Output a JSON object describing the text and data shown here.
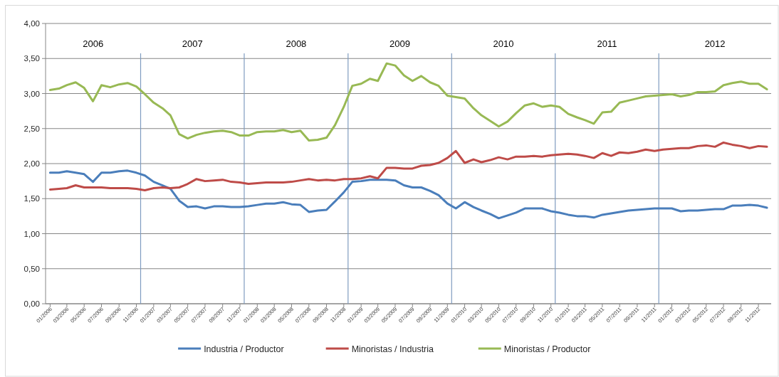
{
  "chart_data": {
    "type": "line",
    "x": [
      "2006-01",
      "2006-02",
      "2006-03",
      "2006-04",
      "2006-05",
      "2006-06",
      "2006-07",
      "2006-08",
      "2006-09",
      "2006-10",
      "2006-11",
      "2006-12",
      "2007-01",
      "2007-02",
      "2007-03",
      "2007-04",
      "2007-05",
      "2007-06",
      "2007-07",
      "2007-08",
      "2007-09",
      "2007-10",
      "2007-11",
      "2007-12",
      "2008-01",
      "2008-02",
      "2008-03",
      "2008-04",
      "2008-05",
      "2008-06",
      "2008-07",
      "2008-08",
      "2008-09",
      "2008-10",
      "2008-11",
      "2008-12",
      "2009-01",
      "2009-02",
      "2009-03",
      "2009-04",
      "2009-05",
      "2009-06",
      "2009-07",
      "2009-08",
      "2009-09",
      "2009-10",
      "2009-11",
      "2009-12",
      "2010-01",
      "2010-02",
      "2010-03",
      "2010-04",
      "2010-05",
      "2010-06",
      "2010-07",
      "2010-08",
      "2010-09",
      "2010-10",
      "2010-11",
      "2010-12",
      "2011-01",
      "2011-02",
      "2011-03",
      "2011-04",
      "2011-05",
      "2011-06",
      "2011-07",
      "2011-08",
      "2011-09",
      "2011-10",
      "2011-11",
      "2011-12",
      "2012-01",
      "2012-02",
      "2012-03",
      "2012-04",
      "2012-05",
      "2012-06",
      "2012-07",
      "2012-08",
      "2012-09",
      "2012-10",
      "2012-11",
      "2012-12"
    ],
    "series": [
      {
        "name": "Industria / Productor",
        "color": "#4a7ebb",
        "values": [
          1.87,
          1.87,
          1.89,
          1.87,
          1.85,
          1.74,
          1.87,
          1.87,
          1.89,
          1.9,
          1.87,
          1.83,
          1.74,
          1.69,
          1.64,
          1.47,
          1.38,
          1.39,
          1.36,
          1.39,
          1.39,
          1.38,
          1.38,
          1.39,
          1.41,
          1.43,
          1.43,
          1.45,
          1.42,
          1.41,
          1.31,
          1.33,
          1.34,
          1.46,
          1.59,
          1.74,
          1.75,
          1.77,
          1.77,
          1.77,
          1.76,
          1.69,
          1.66,
          1.66,
          1.61,
          1.55,
          1.43,
          1.36,
          1.45,
          1.38,
          1.33,
          1.28,
          1.22,
          1.26,
          1.3,
          1.36,
          1.36,
          1.36,
          1.32,
          1.3,
          1.27,
          1.25,
          1.25,
          1.23,
          1.27,
          1.29,
          1.31,
          1.33,
          1.34,
          1.35,
          1.36,
          1.36,
          1.36,
          1.32,
          1.33,
          1.33,
          1.34,
          1.35,
          1.35,
          1.4,
          1.4,
          1.41,
          1.4,
          1.37
        ]
      },
      {
        "name": "Minoristas / Industria",
        "color": "#be4b48",
        "values": [
          1.63,
          1.64,
          1.65,
          1.69,
          1.66,
          1.66,
          1.66,
          1.65,
          1.65,
          1.65,
          1.64,
          1.62,
          1.65,
          1.66,
          1.65,
          1.66,
          1.71,
          1.78,
          1.75,
          1.76,
          1.77,
          1.74,
          1.73,
          1.71,
          1.72,
          1.73,
          1.73,
          1.73,
          1.74,
          1.76,
          1.78,
          1.76,
          1.77,
          1.76,
          1.78,
          1.78,
          1.79,
          1.82,
          1.79,
          1.94,
          1.94,
          1.93,
          1.93,
          1.97,
          1.98,
          2.01,
          2.08,
          2.18,
          2.01,
          2.06,
          2.02,
          2.05,
          2.09,
          2.06,
          2.1,
          2.1,
          2.11,
          2.1,
          2.12,
          2.13,
          2.14,
          2.13,
          2.11,
          2.08,
          2.15,
          2.11,
          2.16,
          2.15,
          2.17,
          2.2,
          2.18,
          2.2,
          2.21,
          2.22,
          2.22,
          2.25,
          2.26,
          2.24,
          2.3,
          2.27,
          2.25,
          2.22,
          2.25,
          2.24
        ]
      },
      {
        "name": "Minoristas / Productor",
        "color": "#98b954",
        "values": [
          3.05,
          3.07,
          3.12,
          3.16,
          3.08,
          2.89,
          3.12,
          3.09,
          3.13,
          3.15,
          3.1,
          2.99,
          2.87,
          2.79,
          2.69,
          2.42,
          2.36,
          2.41,
          2.44,
          2.46,
          2.47,
          2.45,
          2.4,
          2.4,
          2.45,
          2.46,
          2.46,
          2.48,
          2.45,
          2.47,
          2.33,
          2.34,
          2.37,
          2.55,
          2.81,
          3.11,
          3.14,
          3.21,
          3.18,
          3.43,
          3.4,
          3.26,
          3.18,
          3.25,
          3.16,
          3.11,
          2.97,
          2.95,
          2.93,
          2.79,
          2.69,
          2.61,
          2.53,
          2.6,
          2.72,
          2.83,
          2.86,
          2.81,
          2.83,
          2.81,
          2.71,
          2.66,
          2.62,
          2.57,
          2.73,
          2.74,
          2.87,
          2.9,
          2.93,
          2.96,
          2.97,
          2.98,
          2.99,
          2.96,
          2.98,
          3.02,
          3.02,
          3.03,
          3.12,
          3.15,
          3.17,
          3.14,
          3.14,
          3.06
        ]
      }
    ],
    "xlim": [
      "2005-12-16",
      "2012-12-16"
    ],
    "xticks": [
      {
        "value": "2006-01",
        "label": "01/2006"
      },
      {
        "value": "2006-03",
        "label": "03/2006"
      },
      {
        "value": "2006-05",
        "label": "05/2006"
      },
      {
        "value": "2006-07",
        "label": "07/2006"
      },
      {
        "value": "2006-09",
        "label": "09/2006"
      },
      {
        "value": "2006-11",
        "label": "11/2006"
      },
      {
        "value": "2007-01",
        "label": "01/2007"
      },
      {
        "value": "2007-03",
        "label": "03/2007"
      },
      {
        "value": "2007-05",
        "label": "05/2007"
      },
      {
        "value": "2007-07",
        "label": "07/2007"
      },
      {
        "value": "2007-09",
        "label": "09/2007"
      },
      {
        "value": "2007-11",
        "label": "11/2007"
      },
      {
        "value": "2008-01",
        "label": "01/2008"
      },
      {
        "value": "2008-03",
        "label": "03/2008"
      },
      {
        "value": "2008-05",
        "label": "05/2008"
      },
      {
        "value": "2008-07",
        "label": "07/2008"
      },
      {
        "value": "2008-09",
        "label": "09/2008"
      },
      {
        "value": "2008-11",
        "label": "11/2008"
      },
      {
        "value": "2009-01",
        "label": "01/2009"
      },
      {
        "value": "2009-03",
        "label": "03/2009"
      },
      {
        "value": "2009-05",
        "label": "05/2009"
      },
      {
        "value": "2009-07",
        "label": "07/2009"
      },
      {
        "value": "2009-09",
        "label": "09/2009"
      },
      {
        "value": "2009-11",
        "label": "11/2009"
      },
      {
        "value": "2010-01",
        "label": "01/2010"
      },
      {
        "value": "2010-03",
        "label": "03/2010"
      },
      {
        "value": "2010-05",
        "label": "05/2010"
      },
      {
        "value": "2010-07",
        "label": "07/2010"
      },
      {
        "value": "2010-09",
        "label": "09/2010"
      },
      {
        "value": "2010-11",
        "label": "11/2010"
      },
      {
        "value": "2011-01",
        "label": "01/2011"
      },
      {
        "value": "2011-03",
        "label": "03/2011"
      },
      {
        "value": "2011-05",
        "label": "05/2011"
      },
      {
        "value": "2011-07",
        "label": "07/2011"
      },
      {
        "value": "2011-09",
        "label": "09/2011"
      },
      {
        "value": "2011-11",
        "label": "11/2011"
      },
      {
        "value": "2012-01",
        "label": "01/2012"
      },
      {
        "value": "2012-03",
        "label": "03/2012"
      },
      {
        "value": "2012-05",
        "label": "05/2012"
      },
      {
        "value": "2012-07",
        "label": "07/2012"
      },
      {
        "value": "2012-09",
        "label": "09/2012"
      },
      {
        "value": "2012-11",
        "label": "11/2012"
      }
    ],
    "ylim": [
      0,
      4
    ],
    "yticks": [
      {
        "value": 0,
        "label": "0,00"
      },
      {
        "value": 0.5,
        "label": "0,50"
      },
      {
        "value": 1,
        "label": "1,00"
      },
      {
        "value": 1.5,
        "label": "1,50"
      },
      {
        "value": 2,
        "label": "2,00"
      },
      {
        "value": 2.5,
        "label": "2,50"
      },
      {
        "value": 3,
        "label": "3,00"
      },
      {
        "value": 3.5,
        "label": "3,50"
      },
      {
        "value": 4,
        "label": "4,00"
      }
    ],
    "grid": "y",
    "legend": "bottom",
    "ref_lines": [
      {
        "axis": "x",
        "value": "2006-11-16",
        "color": "#7f9cc0"
      },
      {
        "axis": "x",
        "value": "2007-11-16",
        "color": "#7f9cc0"
      },
      {
        "axis": "x",
        "value": "2008-11-16",
        "color": "#7f9cc0"
      },
      {
        "axis": "x",
        "value": "2009-11-16",
        "color": "#7f9cc0"
      },
      {
        "axis": "x",
        "value": "2010-11-16",
        "color": "#7f9cc0"
      },
      {
        "axis": "x",
        "value": "2011-11-16",
        "color": "#7f9cc0"
      }
    ],
    "annotations": [
      "2006",
      "2007",
      "2008",
      "2009",
      "2010",
      "2011",
      "2012"
    ]
  }
}
